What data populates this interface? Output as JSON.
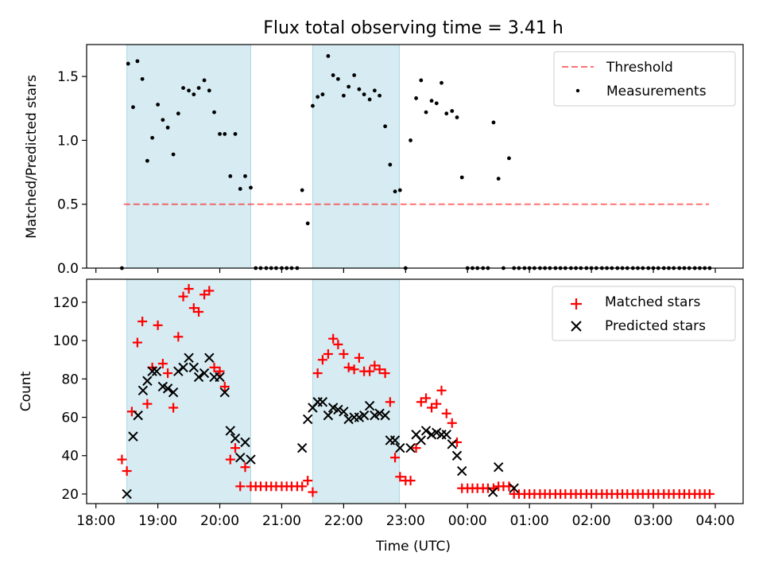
{
  "title": "Flux total observing time = 3.41 h",
  "colors": {
    "shade": "#add8e6",
    "threshold": "#ff0000",
    "measurements": "#000000",
    "matched": "#ff0000",
    "predicted": "#000000"
  },
  "chart_data": [
    {
      "type": "scatter",
      "ylabel": "Matched/Predicted stars",
      "xlim": [
        17.85,
        28.45
      ],
      "ylim": [
        0,
        1.75
      ],
      "yticks": [
        0.0,
        0.5,
        1.0,
        1.5
      ],
      "ytick_labels": [
        "0.0",
        "0.5",
        "1.0",
        "1.5"
      ],
      "legend_position": "top-right",
      "legend": [
        "Threshold",
        "Measurements"
      ],
      "shaded_intervals": [
        [
          18.5,
          20.5
        ],
        [
          21.5,
          22.9
        ]
      ],
      "threshold": {
        "name": "Threshold",
        "y": 0.5,
        "x_range": [
          18.45,
          27.9
        ],
        "style": "dashed"
      },
      "series": [
        {
          "name": "Measurements",
          "marker": "dot",
          "x": [
            18.42,
            18.52,
            18.6,
            18.67,
            18.75,
            18.83,
            18.91,
            19.0,
            19.08,
            19.16,
            19.25,
            19.33,
            19.41,
            19.5,
            19.58,
            19.66,
            19.75,
            19.83,
            19.91,
            20.0,
            20.08,
            20.17,
            20.25,
            20.33,
            20.41,
            20.5,
            20.58,
            20.66,
            20.75,
            20.83,
            20.91,
            21.0,
            21.08,
            21.16,
            21.25,
            21.33,
            21.42,
            21.5,
            21.58,
            21.66,
            21.75,
            21.83,
            21.91,
            22.0,
            22.08,
            22.17,
            22.25,
            22.33,
            22.42,
            22.5,
            22.58,
            22.67,
            22.75,
            22.83,
            22.91,
            23.0,
            23.08,
            23.17,
            23.25,
            23.33,
            23.42,
            23.5,
            23.58,
            23.66,
            23.75,
            23.83,
            23.91,
            24.0,
            24.08,
            24.16,
            24.25,
            24.33,
            24.42,
            24.5,
            24.58,
            24.67,
            24.75,
            24.83,
            24.92,
            25.0,
            25.08,
            25.17,
            25.25,
            25.33,
            25.42,
            25.5,
            25.58,
            25.67,
            25.75,
            25.83,
            25.92,
            26.0,
            26.08,
            26.17,
            26.25,
            26.33,
            26.42,
            26.5,
            26.58,
            26.67,
            26.75,
            26.83,
            26.92,
            27.0,
            27.08,
            27.17,
            27.25,
            27.33,
            27.42,
            27.5,
            27.58,
            27.67,
            27.75,
            27.83,
            27.91
          ],
          "y": [
            0.0,
            1.6,
            1.26,
            1.62,
            1.48,
            0.84,
            1.02,
            1.28,
            1.16,
            1.1,
            0.89,
            1.21,
            1.41,
            1.39,
            1.36,
            1.41,
            1.47,
            1.39,
            1.22,
            1.05,
            1.05,
            0.72,
            1.05,
            0.62,
            0.72,
            0.63,
            0.0,
            0.0,
            0.0,
            0.0,
            0.0,
            0.0,
            0.0,
            0.0,
            0.0,
            0.61,
            0.35,
            1.27,
            1.34,
            1.36,
            1.66,
            1.51,
            1.48,
            1.35,
            1.42,
            1.51,
            1.4,
            1.36,
            1.32,
            1.39,
            1.35,
            1.11,
            0.81,
            0.6,
            0.61,
            0.0,
            1.0,
            1.33,
            1.47,
            1.22,
            1.31,
            1.29,
            1.45,
            1.21,
            1.23,
            1.18,
            0.71,
            0.0,
            0.0,
            0.0,
            0.0,
            0.0,
            1.14,
            0.7,
            0.0,
            0.86,
            0.0,
            0.0,
            0.0,
            0.0,
            0.0,
            0.0,
            0.0,
            0.0,
            0.0,
            0.0,
            0.0,
            0.0,
            0.0,
            0.0,
            0.0,
            0.0,
            0.0,
            0.0,
            0.0,
            0.0,
            0.0,
            0.0,
            0.0,
            0.0,
            0.0,
            0.0,
            0.0,
            0.0,
            0.0,
            0.0,
            0.0,
            0.0,
            0.0,
            0.0,
            0.0,
            0.0,
            0.0,
            0.0,
            0.0
          ]
        }
      ]
    },
    {
      "type": "scatter",
      "ylabel": "Count",
      "xlabel": "Time (UTC)",
      "xlim": [
        17.85,
        28.45
      ],
      "ylim": [
        15,
        132
      ],
      "yticks": [
        20,
        40,
        60,
        80,
        100,
        120
      ],
      "ytick_labels": [
        "20",
        "40",
        "60",
        "80",
        "100",
        "120"
      ],
      "xticks": [
        18,
        19,
        20,
        21,
        22,
        23,
        24,
        25,
        26,
        27,
        28
      ],
      "xtick_labels": [
        "18:00",
        "19:00",
        "20:00",
        "21:00",
        "22:00",
        "23:00",
        "00:00",
        "01:00",
        "02:00",
        "03:00",
        "04:00"
      ],
      "legend_position": "top-right",
      "legend": [
        "Matched stars",
        "Predicted stars"
      ],
      "shaded_intervals": [
        [
          18.5,
          20.5
        ],
        [
          21.5,
          22.9
        ]
      ],
      "series": [
        {
          "name": "Matched stars",
          "marker": "plus",
          "x": [
            18.42,
            18.5,
            18.58,
            18.67,
            18.75,
            18.83,
            18.91,
            19.0,
            19.08,
            19.16,
            19.25,
            19.33,
            19.41,
            19.5,
            19.58,
            19.66,
            19.75,
            19.83,
            19.91,
            20.0,
            20.08,
            20.17,
            20.25,
            20.33,
            20.41,
            20.5,
            20.58,
            20.66,
            20.75,
            20.83,
            20.91,
            21.0,
            21.08,
            21.16,
            21.25,
            21.33,
            21.42,
            21.5,
            21.58,
            21.66,
            21.75,
            21.83,
            21.91,
            22.0,
            22.08,
            22.17,
            22.25,
            22.33,
            22.42,
            22.5,
            22.58,
            22.67,
            22.75,
            22.83,
            22.91,
            23.0,
            23.08,
            23.17,
            23.25,
            23.33,
            23.42,
            23.5,
            23.58,
            23.66,
            23.75,
            23.83,
            23.91,
            24.0,
            24.08,
            24.16,
            24.25,
            24.33,
            24.42,
            24.5,
            24.58,
            24.67,
            24.75,
            24.83,
            24.92,
            25.0,
            25.08,
            25.17,
            25.25,
            25.33,
            25.42,
            25.5,
            25.58,
            25.67,
            25.75,
            25.83,
            25.92,
            26.0,
            26.08,
            26.17,
            26.25,
            26.33,
            26.42,
            26.5,
            26.58,
            26.67,
            26.75,
            26.83,
            26.92,
            27.0,
            27.08,
            27.17,
            27.25,
            27.33,
            27.42,
            27.5,
            27.58,
            27.67,
            27.75,
            27.83,
            27.91
          ],
          "y": [
            38,
            32,
            63,
            99,
            110,
            67,
            86,
            108,
            88,
            83,
            65,
            102,
            123,
            127,
            117,
            115,
            124,
            126,
            86,
            84,
            76,
            38,
            44,
            24,
            34,
            24,
            24,
            24,
            24,
            24,
            24,
            24,
            24,
            24,
            24,
            24,
            27,
            21,
            83,
            90,
            93,
            101,
            98,
            93,
            86,
            85,
            91,
            84,
            84,
            87,
            85,
            83,
            68,
            39,
            29,
            27,
            27,
            44,
            68,
            70,
            65,
            67,
            74,
            62,
            57,
            47,
            23,
            23,
            23,
            23,
            23,
            23,
            23,
            24,
            24,
            24,
            20,
            20,
            20,
            20,
            20,
            20,
            20,
            20,
            20,
            20,
            20,
            20,
            20,
            20,
            20,
            20,
            20,
            20,
            20,
            20,
            20,
            20,
            20,
            20,
            20,
            20,
            20,
            20,
            20,
            20,
            20,
            20,
            20,
            20,
            20,
            20,
            20,
            20,
            20
          ]
        },
        {
          "name": "Predicted stars",
          "marker": "x",
          "x": [
            18.5,
            18.6,
            18.68,
            18.76,
            18.83,
            18.91,
            18.98,
            19.08,
            19.16,
            19.25,
            19.33,
            19.41,
            19.5,
            19.58,
            19.66,
            19.75,
            19.83,
            19.91,
            20.0,
            20.08,
            20.17,
            20.25,
            20.33,
            20.41,
            20.5,
            21.33,
            21.42,
            21.5,
            21.58,
            21.66,
            21.75,
            21.83,
            21.91,
            22.0,
            22.08,
            22.17,
            22.25,
            22.33,
            22.42,
            22.5,
            22.58,
            22.67,
            22.75,
            22.83,
            22.91,
            23.08,
            23.17,
            23.25,
            23.33,
            23.42,
            23.5,
            23.58,
            23.66,
            23.75,
            23.83,
            23.91,
            24.41,
            24.5,
            24.75
          ],
          "y": [
            20,
            50,
            61,
            74,
            79,
            84,
            84,
            76,
            75,
            73,
            84,
            86,
            91,
            86,
            81,
            83,
            91,
            81,
            81,
            73,
            53,
            49,
            39,
            47,
            38,
            44,
            59,
            65,
            68,
            68,
            61,
            65,
            64,
            63,
            59,
            60,
            60,
            61,
            66,
            61,
            62,
            61,
            48,
            48,
            44,
            44,
            51,
            48,
            53,
            51,
            52,
            51,
            51,
            46,
            40,
            32,
            21,
            34,
            23
          ]
        }
      ]
    }
  ]
}
